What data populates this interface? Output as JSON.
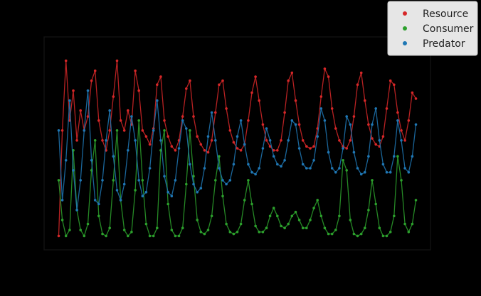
{
  "chart_data": {
    "type": "line",
    "title": "",
    "xlabel": "",
    "ylabel": "",
    "xlim": [
      -20,
      510
    ],
    "ylim": [
      -0.05,
      1.02
    ],
    "grid": false,
    "legend": {
      "placement": "top-right",
      "entries": [
        "Resource",
        "Consumer",
        "Predator"
      ]
    },
    "series": [
      {
        "name": "Resource",
        "color": "#d62728",
        "x": [
          0,
          5,
          10,
          15,
          20,
          25,
          30,
          35,
          40,
          45,
          50,
          55,
          60,
          65,
          70,
          75,
          80,
          85,
          90,
          95,
          100,
          105,
          110,
          115,
          120,
          125,
          130,
          135,
          140,
          145,
          150,
          155,
          160,
          165,
          170,
          175,
          180,
          185,
          190,
          195,
          200,
          205,
          210,
          215,
          220,
          225,
          230,
          235,
          240,
          245,
          250,
          255,
          260,
          265,
          270,
          275,
          280,
          285,
          290,
          295,
          300,
          305,
          310,
          315,
          320,
          325,
          330,
          335,
          340,
          345,
          350,
          355,
          360,
          365,
          370,
          375,
          380,
          385,
          390,
          395,
          400,
          405,
          410,
          415,
          420,
          425,
          430,
          435,
          440,
          445,
          450,
          455,
          460,
          465,
          470,
          475,
          480,
          485,
          490
        ],
        "y": [
          0.02,
          0.55,
          0.9,
          0.6,
          0.75,
          0.5,
          0.65,
          0.55,
          0.62,
          0.8,
          0.85,
          0.6,
          0.5,
          0.45,
          0.55,
          0.72,
          0.9,
          0.6,
          0.55,
          0.65,
          0.58,
          0.85,
          0.75,
          0.55,
          0.52,
          0.48,
          0.56,
          0.78,
          0.82,
          0.6,
          0.52,
          0.47,
          0.45,
          0.5,
          0.62,
          0.76,
          0.8,
          0.62,
          0.52,
          0.48,
          0.45,
          0.44,
          0.5,
          0.64,
          0.78,
          0.8,
          0.66,
          0.55,
          0.49,
          0.46,
          0.45,
          0.48,
          0.6,
          0.74,
          0.82,
          0.7,
          0.58,
          0.5,
          0.47,
          0.45,
          0.45,
          0.5,
          0.64,
          0.8,
          0.84,
          0.7,
          0.58,
          0.5,
          0.47,
          0.46,
          0.47,
          0.56,
          0.72,
          0.86,
          0.82,
          0.66,
          0.56,
          0.5,
          0.47,
          0.46,
          0.5,
          0.62,
          0.78,
          0.84,
          0.7,
          0.58,
          0.51,
          0.48,
          0.47,
          0.52,
          0.66,
          0.8,
          0.78,
          0.64,
          0.55,
          0.5,
          0.6,
          0.74,
          0.71
        ]
      },
      {
        "name": "Consumer",
        "color": "#2ca02c",
        "x": [
          0,
          5,
          10,
          15,
          20,
          25,
          30,
          35,
          40,
          45,
          50,
          55,
          60,
          65,
          70,
          75,
          80,
          85,
          90,
          95,
          100,
          105,
          110,
          115,
          120,
          125,
          130,
          135,
          140,
          145,
          150,
          155,
          160,
          165,
          170,
          175,
          180,
          185,
          190,
          195,
          200,
          205,
          210,
          215,
          220,
          225,
          230,
          235,
          240,
          245,
          250,
          255,
          260,
          265,
          270,
          275,
          280,
          285,
          290,
          295,
          300,
          305,
          310,
          315,
          320,
          325,
          330,
          335,
          340,
          345,
          350,
          355,
          360,
          365,
          370,
          375,
          380,
          385,
          390,
          395,
          400,
          405,
          410,
          415,
          420,
          425,
          430,
          435,
          440,
          445,
          450,
          455,
          460,
          465,
          470,
          475,
          480,
          485,
          490
        ],
        "y": [
          0.3,
          0.1,
          0.02,
          0.05,
          0.45,
          0.15,
          0.05,
          0.02,
          0.08,
          0.35,
          0.5,
          0.12,
          0.03,
          0.02,
          0.06,
          0.3,
          0.55,
          0.2,
          0.05,
          0.02,
          0.04,
          0.25,
          0.6,
          0.3,
          0.08,
          0.02,
          0.02,
          0.06,
          0.45,
          0.55,
          0.18,
          0.05,
          0.02,
          0.02,
          0.06,
          0.28,
          0.55,
          0.32,
          0.1,
          0.04,
          0.03,
          0.05,
          0.12,
          0.3,
          0.42,
          0.22,
          0.08,
          0.04,
          0.03,
          0.04,
          0.08,
          0.2,
          0.3,
          0.18,
          0.07,
          0.04,
          0.04,
          0.06,
          0.12,
          0.16,
          0.12,
          0.07,
          0.06,
          0.08,
          0.12,
          0.14,
          0.1,
          0.06,
          0.06,
          0.1,
          0.16,
          0.2,
          0.12,
          0.06,
          0.03,
          0.03,
          0.05,
          0.12,
          0.4,
          0.35,
          0.1,
          0.03,
          0.02,
          0.03,
          0.06,
          0.15,
          0.3,
          0.18,
          0.06,
          0.02,
          0.02,
          0.04,
          0.12,
          0.42,
          0.3,
          0.08,
          0.04,
          0.08,
          0.2
        ]
      },
      {
        "name": "Predator",
        "color": "#1f77b4",
        "x": [
          0,
          5,
          10,
          15,
          20,
          25,
          30,
          35,
          40,
          45,
          50,
          55,
          60,
          65,
          70,
          75,
          80,
          85,
          90,
          95,
          100,
          105,
          110,
          115,
          120,
          125,
          130,
          135,
          140,
          145,
          150,
          155,
          160,
          165,
          170,
          175,
          180,
          185,
          190,
          195,
          200,
          205,
          210,
          215,
          220,
          225,
          230,
          235,
          240,
          245,
          250,
          255,
          260,
          265,
          270,
          275,
          280,
          285,
          290,
          295,
          300,
          305,
          310,
          315,
          320,
          325,
          330,
          335,
          340,
          345,
          350,
          355,
          360,
          365,
          370,
          375,
          380,
          385,
          390,
          395,
          400,
          405,
          410,
          415,
          420,
          425,
          430,
          435,
          440,
          445,
          450,
          455,
          460,
          465,
          470,
          475,
          480,
          485,
          490
        ],
        "y": [
          0.55,
          0.2,
          0.4,
          0.7,
          0.35,
          0.15,
          0.3,
          0.55,
          0.75,
          0.4,
          0.2,
          0.18,
          0.3,
          0.5,
          0.65,
          0.42,
          0.25,
          0.2,
          0.28,
          0.45,
          0.62,
          0.5,
          0.3,
          0.22,
          0.24,
          0.36,
          0.55,
          0.7,
          0.5,
          0.32,
          0.24,
          0.22,
          0.3,
          0.46,
          0.6,
          0.56,
          0.38,
          0.28,
          0.24,
          0.26,
          0.36,
          0.52,
          0.64,
          0.5,
          0.36,
          0.3,
          0.28,
          0.3,
          0.38,
          0.52,
          0.6,
          0.48,
          0.38,
          0.34,
          0.33,
          0.36,
          0.46,
          0.56,
          0.5,
          0.42,
          0.38,
          0.37,
          0.4,
          0.5,
          0.6,
          0.58,
          0.46,
          0.38,
          0.36,
          0.36,
          0.4,
          0.52,
          0.66,
          0.6,
          0.44,
          0.36,
          0.34,
          0.36,
          0.46,
          0.62,
          0.58,
          0.44,
          0.36,
          0.33,
          0.34,
          0.42,
          0.58,
          0.66,
          0.5,
          0.38,
          0.34,
          0.34,
          0.42,
          0.6,
          0.5,
          0.36,
          0.34,
          0.42,
          0.58
        ]
      }
    ]
  }
}
